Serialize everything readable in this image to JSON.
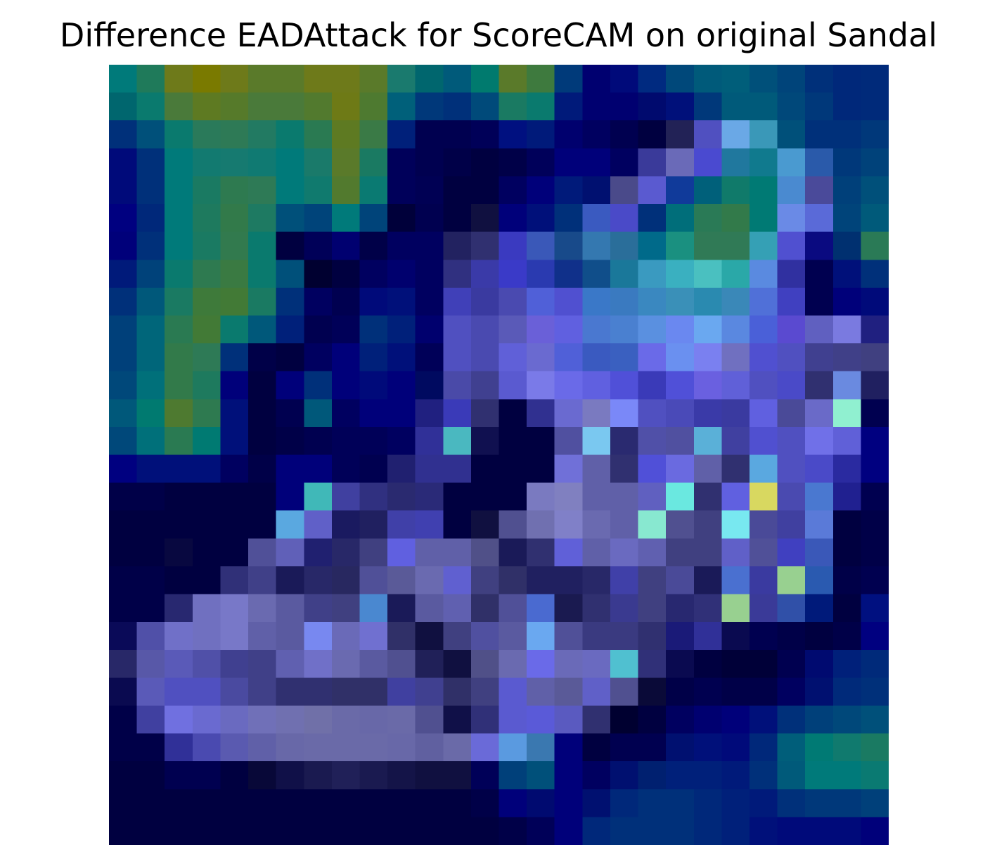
{
  "figure": {
    "title": "Difference EADAttack for ScoreCAM on original Sandal"
  },
  "heatmap": {
    "rows": 28,
    "cols": 28,
    "rows_hex": [
      "#007a7a #1f7a5a #6e7a1a #7a7a00 #6e7a1a #5a7a2a #5a7a2a #6e7a1a #6e7a1a #5a7a2a #1a7a6e #00666e #005a7a #007a6e #5a7a2a #3e7a3e #003a7a #000070 #000a7a #002a80 #00487a #005a7a #005e7a #00507a #00447a #00307a #00287a #002a7a",
      "#00666e #0a7a6e #4a7a3a #5e7a22 #567a2a #4a7a3a #4a7a3a #527a2e #6e7a16 #4e7a30 #00607a #00387a #00307a #004a7a #1a7a62 #0a7a6e #001a7a #000070 #000070 #000a6e #00107a #00387a #005a7a #005a7a #00487a #00387a #00287a #002a7a",
      "#00307a #00507a #0a7a6e #2a7a5a #2e7a56 #227a62 #0a7a6e #2a7a52 #5e7a22 #3a7a46 #00207a #000050 #000050 #000058 #001080 #001a7a #00006e #000060 #000050 #000040 #222256 #5050c0 #6aa8e6 #3a98b8 #00507a #00307a #00307a #00387a",
      "#000a7a #00307a #007a7a #127a70 #167a70 #107a72 #007a7a #1a7a6a #5a7a2a #1a7a62 #00005a #000050 #000048 #000040 #000048 #00005a #00007a #00007a #000060 #3a3a9a #6a6ab8 #4a4ad0 #20789e #107a8e #4a9ad0 #2a5aaa #00387a #00427a",
      "#000a7a #00307a #007a7a #1a7a62 #2e7a50 #2e7a56 #007a7a #107a6e #527a2e #0a7a72 #00005a #000054 #000040 #000040 #000060 #00007a #001a7a #001070 #4a4a8a #5a5ad0 #103a9a #00607a #107a6a #007a74 #4a8ad0 #4a4a9a #00407a #00507a",
      "#000080 #00287a #007a7a #1e7a5e #327a4a #1e7a62 #00507a #00447a #007a7a #00447a #00003a #000050 #000040 #101040 #00007a #00107a #00307a #3a5ac0 #4a4ac8 #00307a #006e7a #2a7a56 #327a4a #007a74 #6a8ae6 #5a6ad8 #00447a #005a7a",
      "#00007a #00307a #007a7a #1a7a62 #327a4e #0a7a6e #000040 #000058 #000070 #000048 #000060 #000060 #222260 #303070 #3a3ac0 #3a58b8 #184a8a #3478b0 #2a6e9a #006a8a #1a9080 #307a56 #307a56 #35a0b5 #5050d0 #0a0a80 #003070 #2a7a56",
      "#001a7a #00427a #0a7a6e #2e7a50 #3a7a42 #0a7a6e #00507a #000030 #000040 #000060 #00006e #000060 #303080 #3a3aa8 #3a3ac8 #2a3ab0 #10308a #104e8a #1a789a #3a9ac0 #3ab0c0 #4ac0c0 #2aa8a8 #5a8ae0 #3030a0 #000050 #00107a #00307a",
      "#00307a #00587a #1a7a62 #3e7a3a #427a36 #1a7a62 #00307a #000060 #000050 #000a7a #00107a #000060 #4040b8 #3a3aa0 #4a4ab0 #5060d8 #5050d0 #3a78c8 #3a7ac0 #3a88c0 #3a90b8 #2a8ab0 #3a88b8 #5070d8 #4040c0 #000050 #00007a #000a7a",
      "#00407a #00667a #2a7a52 #427a36 #0a7a6e #00587a #00207a #000050 #000058 #00307a #00207a #00006e #5050c0 #4a4ab0 #5a5ab8 #6a60d8 #6060e0 #4a78d0 #4a80d0 #5a90e0 #6a88f0 #6aa8f0 #5a88e0 #4a60d8 #5a4ad0 #6060c0 #7a7ae0 #202080",
      "#00407a #00667a #327a4a #2e7a56 #00307a #000048 #000040 #000060 #00007a #00207a #00107a #000058 #5050c0 #4a4ab0 #6060d8 #6a6ad0 #5060d8 #3a5ac0 #3a60c0 #6a6ae8 #6a90f0 #7a80f0 #7070c0 #5050d0 #5050c0 #404090 #404088 #404080",
      "#00487a #00707a #327a4a #1e7a5e #00007a #000040 #00007a #00307a #00007a #000a7a #00007a #000a60 #4a4aa8 #404090 #5a5ad0 #7a7ae8 #6a6ae8 #6060e0 #5050d8 #3a3ab8 #5050d8 #6a60e0 #6060d8 #5050c0 #4a4ac8 #303070 #6a8ae0 #202060",
      "#00587a #007a70 #4e7a30 #2e7a50 #00107a #000040 #000050 #00587a #000060 #00007a #00007a #202080 #3a3ab8 #303070 #000040 #303090 #6a6ad0 #7a7ac0 #7a88f8 #5050c0 #4a4ab8 #3a3aa8 #3a3aa0 #6060e0 #4a4a98 #6a6ac8 #90f0d0 #000050",
      "#00487a #00707a #2a7a52 #007a72 #00107a #000040 #000048 #000050 #000058 #000058 #000060 #303098 #4ab8c0 #101050 #000040 #000040 #5050a0 #7ac8f0 #2a2a70 #5050a8 #5050a0 #5ab0d8 #4040a0 #5050d0 #5050c0 #7070e8 #6060d8 #000080",
      "#000080 #00107a #00107a #00107a #000060 #000048 #00007a #00007a #000058 #000050 #202070 #303090 #303090 #000040 #000040 #000040 #7070d8 #6060a8 #303070 #5050d8 #6a6ae0 #6060a8 #303070 #5aa8e0 #5050c0 #4a4ac8 #2a2aa0 #000080",
      "#000048 #000048 #000040 #000040 #000040 #000040 #00007a #40b8b8 #4040a0 #303080 #2a2a70 #2a2a78 #000040 #000040 #000040 #7a7ac0 #8080c0 #6060a8 #6060a8 #6060c0 #6ae8e0 #303070 #6060e0 #d8d860 #4a4ab0 #4a78d0 #202090 #000050",
      "#000040 #000040 #000040 #000040 #000040 #000040 #5aa8e0 #6060c8 #1a1a60 #202060 #4040a8 #4040b0 #000040 #101040 #505090 #7070b0 #8080c8 #6a6ab0 #6060a8 #88e8d0 #505090 #404080 #78e8f0 #4a4a98 #4040a0 #5a7ad8 #000040 #000048",
      "#000040 #000040 #080840 #000040 #000040 #505098 #6060b8 #202070 #282868 #404080 #6060e0 #6060a8 #6060a8 #505088 #1a1a58 #303070 #6060d8 #6060a8 #6a6ac0 #6060b0 #404080 #404080 #6060c8 #505098 #4040c0 #3a58b8 #000040 #000048",
      "#000048 #000048 #000040 #000040 #303078 #404088 #1a1a58 #282868 #282860 #505098 #5a5a98 #6a6ab0 #6060d0 #404080 #303068 #202060 #202060 #282868 #4040a8 #404080 #4a4a98 #1a1a58 #4a70d0 #3a3aa0 #98d090 #2a5ab0 #000048 #000050",
      "#000048 #000048 #282870 #7070c0 #7878c8 #6a6ab0 #5a5aa0 #404088 #404080 #4a88d0 #1a1a58 #5a5aa0 #6060b0 #303068 #505098 #4a6ad0 #1a1a50 #303070 #3a3a90 #404080 #282870 #303078 #98d090 #3a3a98 #3050a8 #001a7a #000040 #001080",
      "#0a0a58 #5050a8 #7070c8 #7070c0 #7878c8 #6060a8 #5a5aa0 #7888f0 #6a6ab8 #7070d0 #303068 #101040 #404080 #5050a0 #5a5aa0 #6aa8f0 #505098 #3a3a80 #3a3a80 #303070 #1a1a78 #303098 #0a0a50 #000050 #000048 #000040 #000048 #000080",
      "#282868 #5858a8 #5a5ab8 #5050a8 #404090 #404088 #6060b0 #7070c8 #6a6ab0 #5a5aa0 #505090 #202058 #101040 #505088 #6a6ab0 #6a6ae8 #6a6ab8 #6a6ac0 #50c0d0 #303078 #0a0a50 #000040 #000038 #000038 #000050 #000a70 #00207a #002a7a",
      "#0a0a50 #5a5ab8 #5050c0 #5050c0 #4a4aa0 #404088 #303070 #303070 #303068 #303068 #4040a0 #404090 #303068 #404080 #5a5ad0 #6060a8 #5a5a98 #6060c8 #505090 #0a0a38 #000048 #000050 #000048 #000048 #000060 #001070 #002a7a #00307a",
      "#000048 #4040a0 #7070e0 #6a6ad0 #6a6ac0 #7070b8 #7070b0 #7070a8 #6a6aa8 #6868a8 #6a6aa8 #505090 #101048 #303078 #5a5ad0 #5a5ad8 #5a5ac0 #303070 #000030 #000040 #000060 #000070 #00007a #00107a #00307a #00407a #00487a #00507a",
      "#000048 #000048 #303098 #4a4ab0 #5a5ab0 #6060a8 #6868a8 #6a6aa8 #6a6aa8 #6a6aa8 #6868a8 #6060a0 #6a6aa8 #6a6ad8 #5a9ae0 #3a78b0 #00007a #000040 #000050 #000050 #001070 #00107a #000a7a #00287a #005e7a #007a74 #107a6e #1a7a62",
      "#000040 #000040 #000050 #000050 #000040 #080838 #101048 #1a1a50 #202058 #1a1a50 #141448 #101040 #101040 #000058 #00407a #00507a #00007a #000060 #001070 #002070 #00207a #00207a #001a7a #00307a #005a7a #007a7a #007a7a #0a7a72",
      "#000040 #000040 #000040 #000040 #000040 #000040 #000040 #000040 #000040 #000040 #000040 #000040 #000040 #000048 #00007a #000a70 #00007a #001070 #00287a #00307a #00307a #00287a #00207a #001a7a #00307a #00387a #00387a #00407a",
      "#000040 #000040 #000040 #000040 #000040 #000040 #000040 #000040 #000040 #000040 #000040 #000040 #000040 #000040 #000048 #000058 #00007a #00287a #00307a #00307a #00307a #00287a #00207a #00107a #000a7a #000a7a #000a7a #00007a"
    ]
  }
}
